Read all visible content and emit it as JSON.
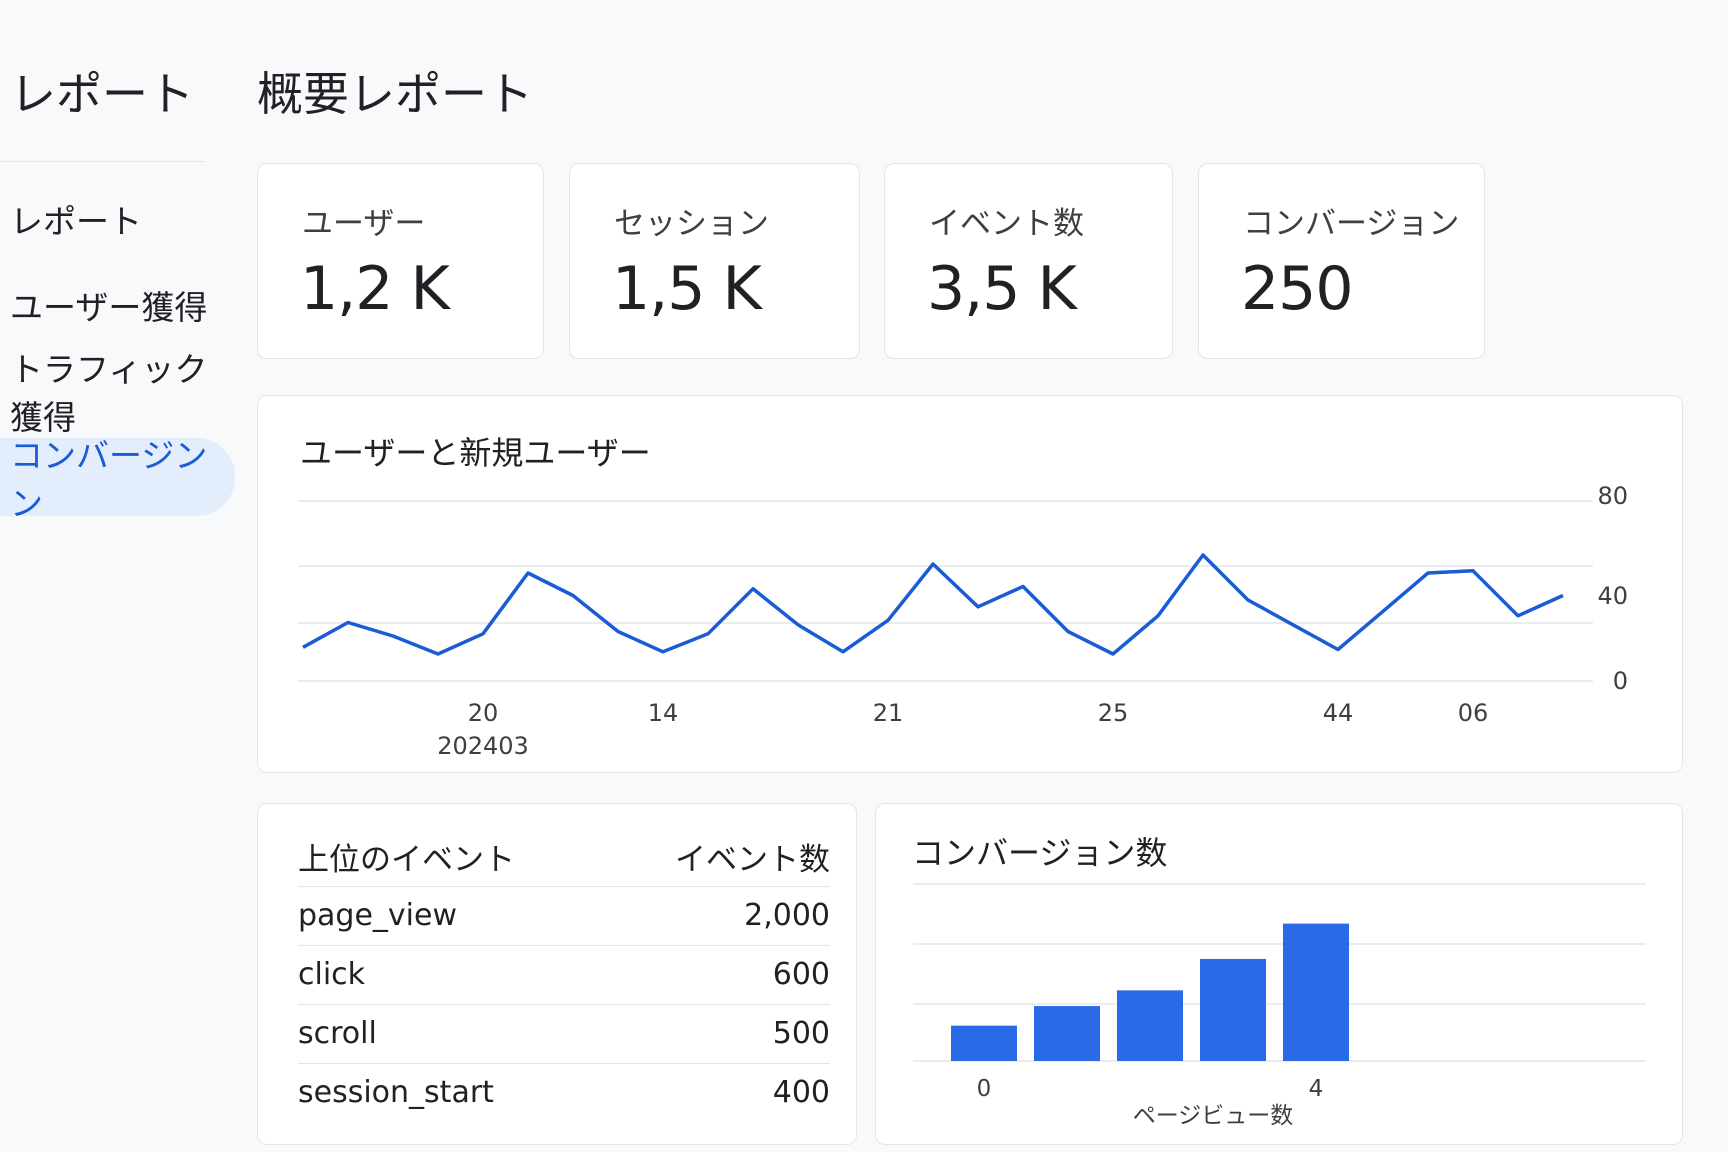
{
  "sidebar": {
    "title": "レポート",
    "items": [
      {
        "label": "レポート",
        "active": false
      },
      {
        "label": "ユーザー獲得",
        "active": false
      },
      {
        "label": "トラフィック獲得",
        "active": false
      },
      {
        "label": "コンバージンン",
        "active": true
      }
    ]
  },
  "header": {
    "title": "概要レポート"
  },
  "kpis": [
    {
      "label": "ユーザー",
      "value": "1,2 K"
    },
    {
      "label": "セッション",
      "value": "1,5 K"
    },
    {
      "label": "イベント数",
      "value": "3,5 K"
    },
    {
      "label": "コンバージョン",
      "value": "250"
    }
  ],
  "colors": {
    "accent": "#1a5bd6",
    "bar": "#2a6ae6",
    "active_bg": "#e3edfb",
    "grid": "#e3e5e8"
  },
  "line_chart": {
    "title": "ユーザーと新規ユーザー",
    "chart_data": {
      "type": "line",
      "y_ticks": [
        "80",
        "40",
        "0"
      ],
      "ylim": [
        0,
        80
      ],
      "x_ticks": [
        {
          "label": "20",
          "sublabel": "202403",
          "index": 4
        },
        {
          "label": "14",
          "sublabel": "",
          "index": 8
        },
        {
          "label": "21",
          "sublabel": "",
          "index": 13
        },
        {
          "label": "25",
          "sublabel": "",
          "index": 18
        },
        {
          "label": "44",
          "sublabel": "",
          "index": 23
        },
        {
          "label": "06",
          "sublabel": "",
          "index": 26
        }
      ],
      "series": [
        {
          "values": [
            15,
            26,
            20,
            12,
            21,
            48,
            38,
            22,
            13,
            21,
            41,
            25,
            13,
            27,
            52,
            33,
            42,
            22,
            12,
            29,
            56,
            36,
            25,
            14,
            31,
            48,
            49,
            29,
            38
          ]
        }
      ]
    }
  },
  "events_table": {
    "col_event": "上位のイベント",
    "col_count": "イベント数",
    "rows": [
      {
        "name": "page_view",
        "count": "2,000"
      },
      {
        "name": "click",
        "count": "600"
      },
      {
        "name": "scroll",
        "count": "500"
      },
      {
        "name": "session_start",
        "count": "400"
      }
    ]
  },
  "bar_chart": {
    "title": "コンバージョン数",
    "chart_data": {
      "type": "bar",
      "values": [
        18,
        28,
        36,
        52,
        70
      ],
      "ylim": [
        0,
        80
      ],
      "x_ticks": [
        {
          "label": "0",
          "index": 0
        },
        {
          "label": "4",
          "index": 4
        }
      ],
      "xlabel": "ページビュー数"
    }
  }
}
